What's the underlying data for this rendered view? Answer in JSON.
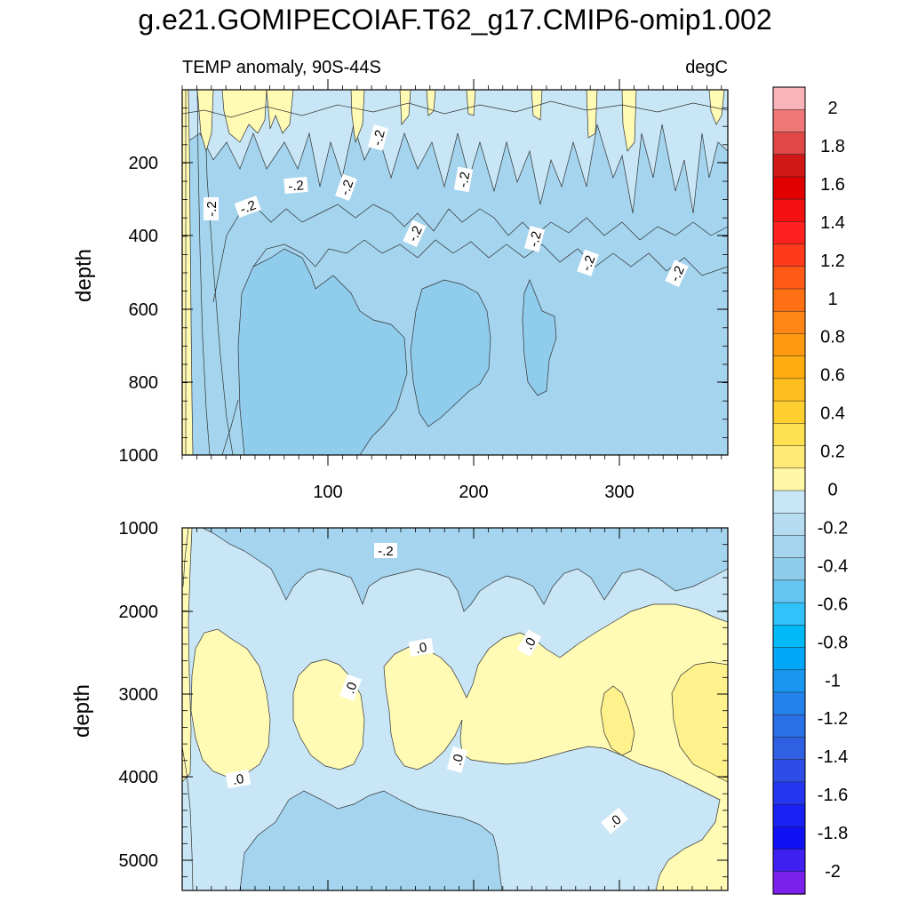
{
  "title": "g.e21.GOMIPECOIAF.T62_g17.CMIP6-omip1.002",
  "chart_data": [
    {
      "type": "heatmap",
      "subtitle_left": "TEMP anomaly, 90S-44S",
      "subtitle_right": "degC",
      "ylabel": "depth",
      "xlabel": "",
      "xlim": [
        1,
        372
      ],
      "ylim": [
        1000,
        0
      ],
      "xticks": [
        "100",
        "200",
        "300"
      ],
      "yticks": [
        "200",
        "400",
        "600",
        "800",
        "1000"
      ],
      "contour_labels": [
        "-.2",
        "-.2",
        "-.2",
        "-.2",
        "-.2",
        "-.2",
        "-.2",
        "-.2",
        "-.2",
        "-.2"
      ],
      "dominant_range": [
        -0.3,
        -0.1
      ]
    },
    {
      "type": "heatmap",
      "ylabel": "depth",
      "xlim": [
        1,
        372
      ],
      "ylim": [
        5400,
        1000
      ],
      "yticks": [
        "1000",
        "2000",
        "3000",
        "4000",
        "5000"
      ],
      "contour_labels": [
        "-.2",
        ".0",
        ".0",
        ".0",
        ".0",
        ".0",
        ".0"
      ],
      "dominant_range": [
        -0.2,
        0.1
      ]
    }
  ],
  "colorbar": {
    "labels": [
      "2",
      "1.8",
      "1.6",
      "1.4",
      "1.2",
      "1",
      "0.8",
      "0.6",
      "0.4",
      "0.2",
      "0",
      "-0.2",
      "-0.4",
      "-0.6",
      "-0.8",
      "-1",
      "-1.2",
      "-1.4",
      "-1.6",
      "-1.8",
      "-2"
    ],
    "colors": [
      "#f8b4b8",
      "#f07878",
      "#e04848",
      "#d01818",
      "#e00000",
      "#f41010",
      "#ff2020",
      "#ff3a1a",
      "#ff5a18",
      "#ff7014",
      "#ff8614",
      "#ff9a10",
      "#ffac10",
      "#ffbe20",
      "#ffd030",
      "#ffe050",
      "#ffea78",
      "#fff6a8",
      "#c8e6f6",
      "#b6dcf2",
      "#a4d4ee",
      "#90ccec",
      "#66c6f2",
      "#30c2f8",
      "#00baf8",
      "#00a6f8",
      "#1896f0",
      "#2482ec",
      "#2a70e6",
      "#3060e2",
      "#2e4ce8",
      "#2436f0",
      "#1820f2",
      "#1010f4",
      "#4020f0",
      "#7a20ea"
    ]
  },
  "colors": {
    "fill_main": "#a4d4ee",
    "fill_light": "#c8e6f6",
    "fill_dark": "#90ccec",
    "fill_yellow": "#fffab4",
    "fill_yellow2": "#fff28c"
  }
}
